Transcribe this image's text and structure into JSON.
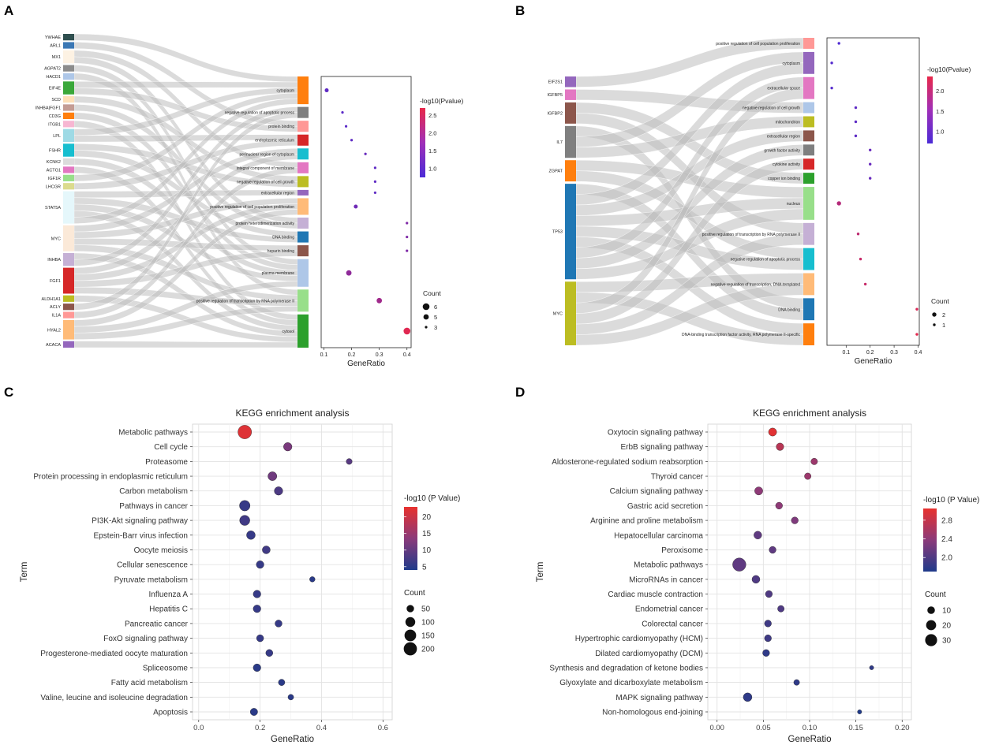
{
  "panels": {
    "A": {
      "label": "A",
      "genes": [
        {
          "name": "YWHAE",
          "color": "#2f4f4f",
          "w": 1
        },
        {
          "name": "ARL1",
          "color": "#3b78b5",
          "w": 1
        },
        {
          "name": "MX1",
          "color": "#fdf2e3",
          "w": 2
        },
        {
          "name": "AGPAT2",
          "color": "#8c8c8c",
          "w": 1
        },
        {
          "name": "HACD1",
          "color": "#aec7e8",
          "w": 1
        },
        {
          "name": "EIF4E",
          "color": "#3aa83a",
          "w": 2
        },
        {
          "name": "SCD",
          "color": "#fde0b8",
          "w": 1
        },
        {
          "name": "INHBA|FGF1",
          "color": "#c49c94",
          "w": 1
        },
        {
          "name": "CD3G",
          "color": "#ff7f0e",
          "w": 1
        },
        {
          "name": "ITGB1",
          "color": "#f7b6d2",
          "w": 1
        },
        {
          "name": "LPL",
          "color": "#9edae5",
          "w": 2
        },
        {
          "name": "FSHR",
          "color": "#17becf",
          "w": 2
        },
        {
          "name": "KCNK2",
          "color": "#dbdbdb",
          "w": 1
        },
        {
          "name": "ACTG1",
          "color": "#e377c2",
          "w": 1
        },
        {
          "name": "IGF1R",
          "color": "#98df8a",
          "w": 1
        },
        {
          "name": "LHCGR",
          "color": "#dbdb8d",
          "w": 1
        },
        {
          "name": "STAT5A",
          "color": "#e5f7fb",
          "w": 5
        },
        {
          "name": "MYC",
          "color": "#fbe9d8",
          "w": 4
        },
        {
          "name": "INHBA",
          "color": "#c5b0d5",
          "w": 2
        },
        {
          "name": "FGF1",
          "color": "#d62728",
          "w": 4
        },
        {
          "name": "ALDH1A1",
          "color": "#bcbd22",
          "w": 1
        },
        {
          "name": "ACLY",
          "color": "#8c564b",
          "w": 1
        },
        {
          "name": "IL1A",
          "color": "#ff9896",
          "w": 1
        },
        {
          "name": "HYAL2",
          "color": "#ffbb78",
          "w": 3
        },
        {
          "name": "ACACA",
          "color": "#9467bd",
          "w": 1
        }
      ],
      "terms": [
        {
          "name": "cytoplasm",
          "color": "#ff7f0e",
          "w": 5
        },
        {
          "name": "negative regulation of apoptotic process",
          "color": "#7f7f7f",
          "w": 2
        },
        {
          "name": "protein binding",
          "color": "#ff9896",
          "w": 2
        },
        {
          "name": "endoplasmic reticulum",
          "color": "#d62728",
          "w": 2
        },
        {
          "name": "perinuclear region of cytoplasm",
          "color": "#17becf",
          "w": 2
        },
        {
          "name": "integral component of membrane",
          "color": "#e377c2",
          "w": 2
        },
        {
          "name": "negative regulation of cell growth",
          "color": "#bcbd22",
          "w": 2
        },
        {
          "name": "extracellular region",
          "color": "#9467bd",
          "w": 1
        },
        {
          "name": "positive regulation of cell population proliferation",
          "color": "#ffbb78",
          "w": 3
        },
        {
          "name": "protein heterodimerization activity",
          "color": "#c5b0d5",
          "w": 2
        },
        {
          "name": "DNA binding",
          "color": "#1f77b4",
          "w": 2
        },
        {
          "name": "heparin binding",
          "color": "#8c564b",
          "w": 2
        },
        {
          "name": "plasma membrane",
          "color": "#aec7e8",
          "w": 5
        },
        {
          "name": "positive regulation of transcription by RNA polymerase II",
          "color": "#98df8a",
          "w": 4
        },
        {
          "name": "cytosol",
          "color": "#2ca02c",
          "w": 6
        }
      ],
      "dots": [
        {
          "ratio": 0.11,
          "p": 1.0,
          "count": 4
        },
        {
          "ratio": 0.167,
          "p": 0.95,
          "count": 3
        },
        {
          "ratio": 0.18,
          "p": 0.95,
          "count": 3
        },
        {
          "ratio": 0.2,
          "p": 1.0,
          "count": 3
        },
        {
          "ratio": 0.25,
          "p": 1.1,
          "count": 3
        },
        {
          "ratio": 0.285,
          "p": 1.0,
          "count": 3
        },
        {
          "ratio": 0.285,
          "p": 1.0,
          "count": 3
        },
        {
          "ratio": 0.285,
          "p": 1.0,
          "count": 3
        },
        {
          "ratio": 0.215,
          "p": 1.2,
          "count": 4
        },
        {
          "ratio": 0.4,
          "p": 1.4,
          "count": 3
        },
        {
          "ratio": 0.4,
          "p": 1.4,
          "count": 3
        },
        {
          "ratio": 0.4,
          "p": 1.4,
          "count": 3
        },
        {
          "ratio": 0.19,
          "p": 1.6,
          "count": 5
        },
        {
          "ratio": 0.3,
          "p": 1.8,
          "count": 5
        },
        {
          "ratio": 0.4,
          "p": 2.6,
          "count": 6
        }
      ],
      "xticks": [
        0.1,
        0.2,
        0.3,
        0.4
      ],
      "xlim": [
        0.09,
        0.415
      ],
      "xlabel": "GeneRatio",
      "colorbar": {
        "title": "-log10(Pvalue)",
        "ticks": [
          "2.5",
          "2.0",
          "1.5",
          "1.0"
        ],
        "min": 0.75,
        "max": 2.7
      },
      "size_legend": {
        "title": "Count",
        "items": [
          "6",
          "5",
          "3"
        ]
      }
    },
    "B": {
      "label": "B",
      "genes": [
        {
          "name": "EIF2S1",
          "color": "#9467bd",
          "w": 1
        },
        {
          "name": "IGFBP5",
          "color": "#e377c2",
          "w": 1
        },
        {
          "name": "IGFBP2",
          "color": "#8c564b",
          "w": 2
        },
        {
          "name": "IL7",
          "color": "#7f7f7f",
          "w": 3
        },
        {
          "name": "ZGPAT",
          "color": "#ff7f0e",
          "w": 2
        },
        {
          "name": "TP53",
          "color": "#1f77b4",
          "w": 9
        },
        {
          "name": "MYC",
          "color": "#bcbd22",
          "w": 6
        }
      ],
      "terms": [
        {
          "name": "positive regulation of cell population proliferation",
          "color": "#ff9896",
          "w": 1
        },
        {
          "name": "cytoplasm",
          "color": "#9467bd",
          "w": 2
        },
        {
          "name": "extracellular space",
          "color": "#e377c2",
          "w": 2
        },
        {
          "name": "negative regulation of cell growth",
          "color": "#aec7e8",
          "w": 1
        },
        {
          "name": "mitochondrion",
          "color": "#bcbd22",
          "w": 1
        },
        {
          "name": "extracellular region",
          "color": "#8c564b",
          "w": 1
        },
        {
          "name": "growth factor activity",
          "color": "#7f7f7f",
          "w": 1
        },
        {
          "name": "cytokine activity",
          "color": "#d62728",
          "w": 1
        },
        {
          "name": "copper ion binding",
          "color": "#2ca02c",
          "w": 1
        },
        {
          "name": "nucleus",
          "color": "#98df8a",
          "w": 3
        },
        {
          "name": "positive regulation of transcription by RNA polymerase II",
          "color": "#c5b0d5",
          "w": 2
        },
        {
          "name": "negative regulation of apoptotic process",
          "color": "#17becf",
          "w": 2
        },
        {
          "name": "negative regulation of transcription, DNA-templated",
          "color": "#ffbb78",
          "w": 2
        },
        {
          "name": "DNA binding",
          "color": "#1f77b4",
          "w": 2
        },
        {
          "name": "DNA-binding transcription factor activity, RNA polymerase II-specific",
          "color": "#ff7f0e",
          "w": 2
        }
      ],
      "dots": [
        {
          "ratio": 0.07,
          "p": 0.75,
          "count": 1
        },
        {
          "ratio": 0.04,
          "p": 0.8,
          "count": 1
        },
        {
          "ratio": 0.04,
          "p": 0.8,
          "count": 1
        },
        {
          "ratio": 0.14,
          "p": 0.9,
          "count": 1
        },
        {
          "ratio": 0.14,
          "p": 0.9,
          "count": 1
        },
        {
          "ratio": 0.14,
          "p": 0.9,
          "count": 1
        },
        {
          "ratio": 0.2,
          "p": 1.0,
          "count": 1
        },
        {
          "ratio": 0.2,
          "p": 1.0,
          "count": 1
        },
        {
          "ratio": 0.2,
          "p": 1.0,
          "count": 1
        },
        {
          "ratio": 0.07,
          "p": 1.8,
          "count": 2
        },
        {
          "ratio": 0.15,
          "p": 1.9,
          "count": 1
        },
        {
          "ratio": 0.16,
          "p": 2.0,
          "count": 1
        },
        {
          "ratio": 0.18,
          "p": 2.0,
          "count": 1
        },
        {
          "ratio": 0.395,
          "p": 2.2,
          "count": 1
        },
        {
          "ratio": 0.395,
          "p": 2.3,
          "count": 1
        }
      ],
      "xticks": [
        0.1,
        0.2,
        0.3,
        0.4
      ],
      "xlim": [
        0.02,
        0.405
      ],
      "xlabel": "GeneRatio",
      "colorbar": {
        "title": "-log10(Pvalue)",
        "ticks": [
          "2.0",
          "1.5",
          "1.0"
        ],
        "min": 0.7,
        "max": 2.35
      },
      "size_legend": {
        "title": "Count",
        "items": [
          "2",
          "1"
        ]
      }
    }
  },
  "chart_data": [
    {
      "type": "scatter",
      "panel": "C",
      "title": "KEGG enrichment analysis",
      "xlabel": "GeneRatio",
      "ylabel": "Term",
      "xlim": [
        -0.02,
        0.63
      ],
      "xticks": [
        "0.0",
        "0.2",
        "0.4",
        "0.6"
      ],
      "terms": [
        "Metabolic pathways",
        "Cell cycle",
        "Proteasome",
        "Protein processing in endoplasmic reticulum",
        "Carbon metabolism",
        "Pathways in cancer",
        "PI3K-Akt signaling pathway",
        "Epstein-Barr virus infection",
        "Oocyte meiosis",
        "Cellular senescence",
        "Pyruvate metabolism",
        "Influenza A",
        "Hepatitis C",
        "Pancreatic cancer",
        "FoxO signaling pathway",
        "Progesterone-mediated oocyte maturation",
        "Spliceosome",
        "Fatty acid metabolism",
        "Valine, leucine and isoleucine degradation",
        "Apoptosis"
      ],
      "gene_ratio": [
        0.15,
        0.29,
        0.49,
        0.24,
        0.26,
        0.15,
        0.15,
        0.17,
        0.22,
        0.2,
        0.37,
        0.19,
        0.19,
        0.26,
        0.2,
        0.23,
        0.19,
        0.27,
        0.3,
        0.18
      ],
      "count": [
        215,
        70,
        28,
        80,
        70,
        120,
        110,
        75,
        60,
        55,
        22,
        55,
        55,
        45,
        45,
        45,
        55,
        35,
        25,
        50
      ],
      "neg_log10_p": [
        22,
        12,
        9,
        11,
        8,
        6,
        7,
        6,
        7,
        6,
        5,
        6,
        6,
        6,
        6,
        6,
        5,
        5,
        5,
        5
      ],
      "colorbar": {
        "title": "-log10 (P Value)",
        "ticks": [
          "20",
          "15",
          "10",
          "5"
        ],
        "min": 4,
        "max": 23
      },
      "size_legend": {
        "title": "Count",
        "items": [
          "50",
          "100",
          "150",
          "200"
        ]
      }
    },
    {
      "type": "scatter",
      "panel": "D",
      "title": "KEGG enrichment analysis",
      "xlabel": "GeneRatio",
      "ylabel": "Term",
      "xlim": [
        -0.01,
        0.21
      ],
      "xticks": [
        "0.00",
        "0.05",
        "0.10",
        "0.15",
        "0.20"
      ],
      "terms": [
        "Oxytocin signaling pathway",
        "ErbB signaling pathway",
        "Aldosterone-regulated sodium reabsorption",
        "Thyroid cancer",
        "Calcium signaling pathway",
        "Gastric acid secretion",
        "Arginine and proline metabolism",
        "Hepatocellular carcinoma",
        "Peroxisome",
        "Metabolic pathways",
        "MicroRNAs in cancer",
        "Cardiac muscle contraction",
        "Endometrial cancer",
        "Colorectal cancer",
        "Hypertrophic cardiomyopathy (HCM)",
        "Dilated cardiomyopathy (DCM)",
        "Synthesis and degradation of ketone bodies",
        "Glyoxylate and dicarboxylate metabolism",
        "MAPK signaling pathway",
        "Non-homologous end-joining"
      ],
      "gene_ratio": [
        0.06,
        0.068,
        0.105,
        0.098,
        0.045,
        0.067,
        0.084,
        0.044,
        0.06,
        0.024,
        0.042,
        0.056,
        0.069,
        0.055,
        0.055,
        0.053,
        0.167,
        0.086,
        0.033,
        0.154
      ],
      "count": [
        12,
        10,
        7,
        7,
        12,
        8,
        8,
        11,
        8,
        38,
        11,
        8,
        7,
        8,
        8,
        8,
        2,
        5,
        14,
        2
      ],
      "neg_log10_p": [
        3.0,
        2.7,
        2.5,
        2.5,
        2.4,
        2.4,
        2.3,
        2.1,
        2.1,
        2.1,
        2.0,
        2.0,
        2.0,
        1.9,
        1.9,
        1.8,
        1.8,
        1.8,
        1.8,
        1.7
      ],
      "colorbar": {
        "title": "-log10 (P Value)",
        "ticks": [
          "2.8",
          "2.4",
          "2.0"
        ],
        "min": 1.7,
        "max": 3.05
      },
      "size_legend": {
        "title": "Count",
        "items": [
          "10",
          "20",
          "30"
        ]
      }
    }
  ]
}
